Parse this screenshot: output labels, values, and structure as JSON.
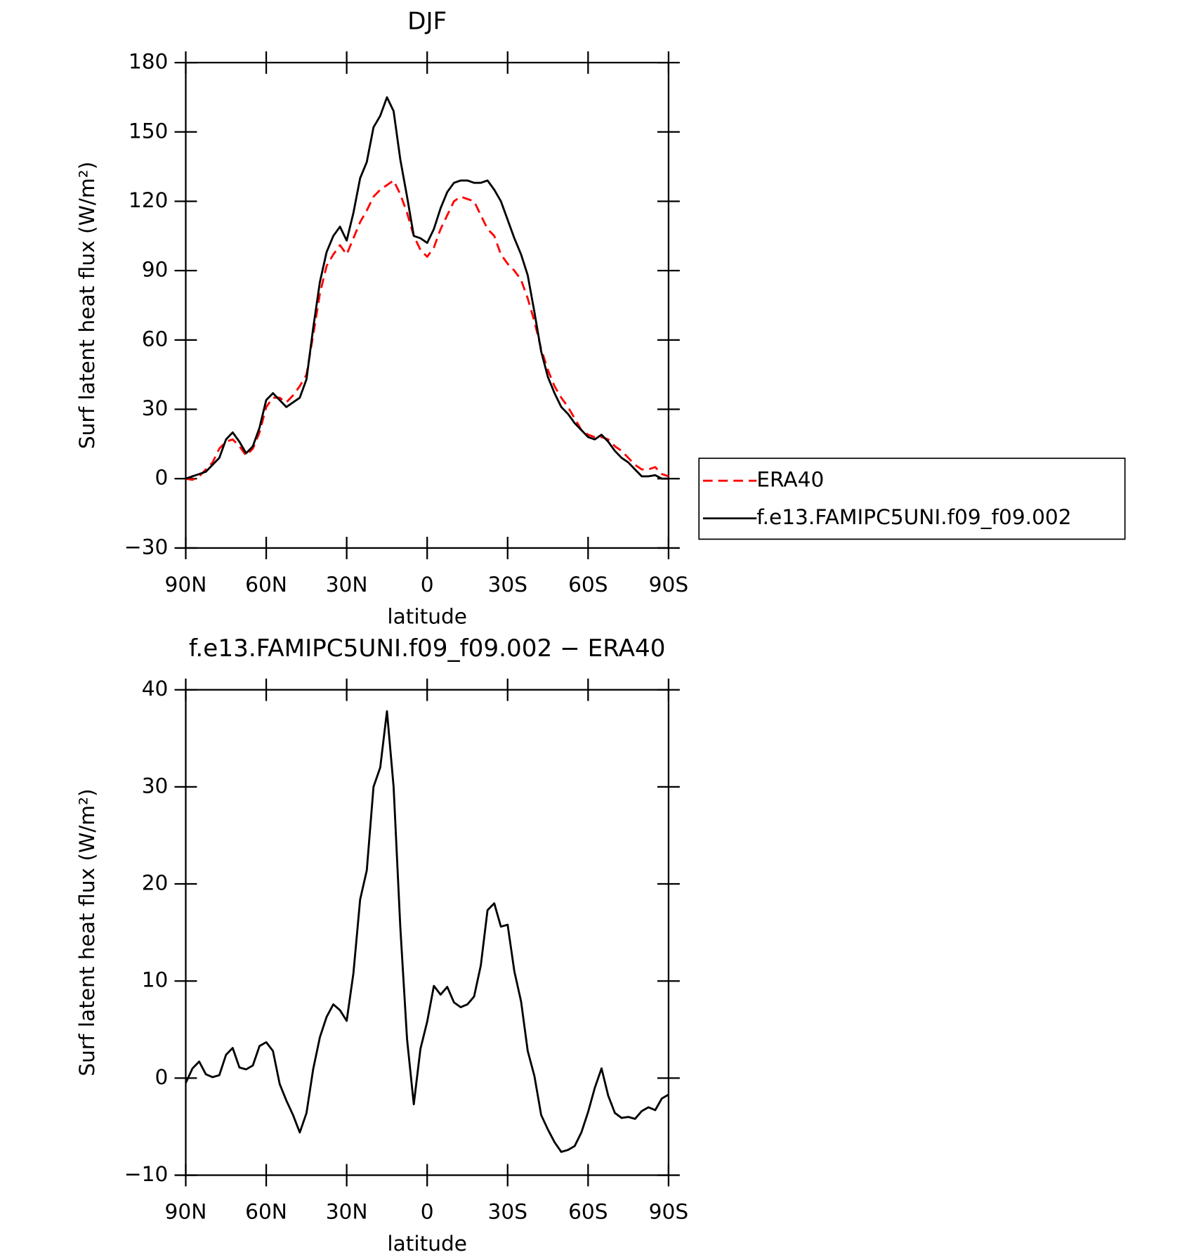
{
  "chart_data": [
    {
      "type": "line",
      "title": "DJF",
      "xlabel": "latitude",
      "ylabel": "Surf latent heat flux (W/m²)",
      "x": [
        90,
        87.5,
        85,
        82.5,
        80,
        77.5,
        75,
        72.5,
        70,
        67.5,
        65,
        62.5,
        60,
        57.5,
        55,
        52.5,
        50,
        47.5,
        45,
        42.5,
        40,
        37.5,
        35,
        32.5,
        30,
        27.5,
        25,
        22.5,
        20,
        17.5,
        15,
        12.5,
        10,
        7.5,
        5,
        2.5,
        0,
        -2.5,
        -5,
        -7.5,
        -10,
        -12.5,
        -15,
        -17.5,
        -20,
        -22.5,
        -25,
        -27.5,
        -30,
        -32.5,
        -35,
        -37.5,
        -40,
        -42.5,
        -45,
        -47.5,
        -50,
        -52.5,
        -55,
        -57.5,
        -60,
        -62.5,
        -65,
        -67.5,
        -70,
        -72.5,
        -75,
        -77.5,
        -80,
        -82.5,
        -85,
        -87.5,
        -90
      ],
      "series": [
        {
          "name": "ERA40",
          "color": "#ff0000",
          "line_style": "dashed",
          "values": [
            0,
            -0.5,
            1,
            4,
            7,
            13,
            16,
            17,
            14,
            10,
            13,
            20,
            31,
            35,
            35,
            33,
            36,
            40,
            45,
            62,
            80,
            92,
            97,
            101,
            97,
            104,
            111,
            116,
            122,
            125,
            127,
            129,
            123,
            115,
            105,
            99,
            96,
            100,
            108,
            114,
            120,
            122,
            121,
            120,
            114,
            108,
            105,
            97,
            93,
            90,
            86,
            78,
            68,
            56,
            47,
            40,
            35,
            31,
            26,
            21,
            19,
            18,
            18,
            17,
            14,
            12,
            9,
            6,
            4,
            4,
            5,
            2,
            1
          ]
        },
        {
          "name": "f.e13.FAMIPC5UNI.f09_f09.002",
          "color": "#000000",
          "line_style": "solid",
          "values": [
            0,
            1,
            2,
            3,
            6,
            9,
            17,
            20,
            16,
            11,
            14,
            22,
            34,
            37,
            34,
            31,
            33,
            35,
            43,
            65,
            85,
            98,
            105,
            109,
            103,
            115,
            130,
            137,
            152,
            157,
            165,
            159,
            138,
            122,
            105,
            104,
            102,
            108,
            117,
            124,
            128,
            129,
            129,
            128,
            128,
            129,
            125,
            120,
            112,
            104,
            97,
            88,
            72,
            55,
            44,
            37,
            31,
            28,
            24,
            21,
            18,
            17,
            19,
            16,
            12,
            9,
            7,
            4,
            1,
            1,
            1.5,
            0,
            0
          ]
        }
      ],
      "xlim": [
        90,
        -90
      ],
      "xticks": [
        {
          "value": 90,
          "label": "90N"
        },
        {
          "value": 60,
          "label": "60N"
        },
        {
          "value": 30,
          "label": "30N"
        },
        0,
        {
          "value": -30,
          "label": "30S"
        },
        {
          "value": -60,
          "label": "60S"
        },
        {
          "value": -90,
          "label": "90S"
        }
      ],
      "ylim": [
        -30,
        180
      ],
      "yticks": [
        {
          "value": -30,
          "label": "−30"
        },
        0,
        30,
        60,
        90,
        120,
        150,
        180
      ],
      "legend": "right"
    },
    {
      "type": "line",
      "title": "f.e13.FAMIPC5UNI.f09_f09.002 − ERA40",
      "xlabel": "latitude",
      "ylabel": "Surf latent heat flux (W/m²)",
      "x": [
        90,
        87.5,
        85,
        82.5,
        80,
        77.5,
        75,
        72.5,
        70,
        67.5,
        65,
        62.5,
        60,
        57.5,
        55,
        52.5,
        50,
        47.5,
        45,
        42.5,
        40,
        37.5,
        35,
        32.5,
        30,
        27.5,
        25,
        22.5,
        20,
        17.5,
        15,
        12.5,
        10,
        7.5,
        5,
        2.5,
        0,
        -2.5,
        -5,
        -7.5,
        -10,
        -12.5,
        -15,
        -17.5,
        -20,
        -22.5,
        -25,
        -27.5,
        -30,
        -32.5,
        -35,
        -37.5,
        -40,
        -42.5,
        -45,
        -47.5,
        -50,
        -52.5,
        -55,
        -57.5,
        -60,
        -62.5,
        -65,
        -67.5,
        -70,
        -72.5,
        -75,
        -77.5,
        -80,
        -82.5,
        -85,
        -87.5,
        -90
      ],
      "series": [
        {
          "color": "#000000",
          "line_style": "solid",
          "values": [
            -0.5,
            1,
            1.7,
            0.4,
            0.1,
            0.3,
            2.4,
            3.1,
            1.1,
            0.9,
            1.3,
            3.3,
            3.7,
            2.8,
            -0.6,
            -2.3,
            -3.8,
            -5.6,
            -3.6,
            0.9,
            4.2,
            6.3,
            7.6,
            7,
            5.9,
            10.8,
            18.4,
            21.4,
            30,
            32,
            37.8,
            30,
            15.5,
            4,
            -2.7,
            3,
            5.8,
            9.5,
            8.6,
            9.4,
            7.8,
            7.3,
            7.6,
            8.4,
            11.6,
            17.3,
            18,
            15.6,
            15.8,
            11,
            7.9,
            2.8,
            0.2,
            -3.8,
            -5.3,
            -6.6,
            -7.6,
            -7.4,
            -7,
            -5.6,
            -3.5,
            -1,
            1,
            -1.8,
            -3.6,
            -4.1,
            -4,
            -4.2,
            -3.4,
            -3,
            -3.3,
            -2.1,
            -1.7
          ]
        }
      ],
      "xlim": [
        90,
        -90
      ],
      "xticks": [
        {
          "value": 90,
          "label": "90N"
        },
        {
          "value": 60,
          "label": "60N"
        },
        {
          "value": 30,
          "label": "30N"
        },
        0,
        {
          "value": -30,
          "label": "30S"
        },
        {
          "value": -60,
          "label": "60S"
        },
        {
          "value": -90,
          "label": "90S"
        }
      ],
      "ylim": [
        -10,
        40
      ],
      "yticks": [
        {
          "value": -10,
          "label": "−10"
        },
        0,
        10,
        20,
        30,
        40
      ]
    }
  ]
}
